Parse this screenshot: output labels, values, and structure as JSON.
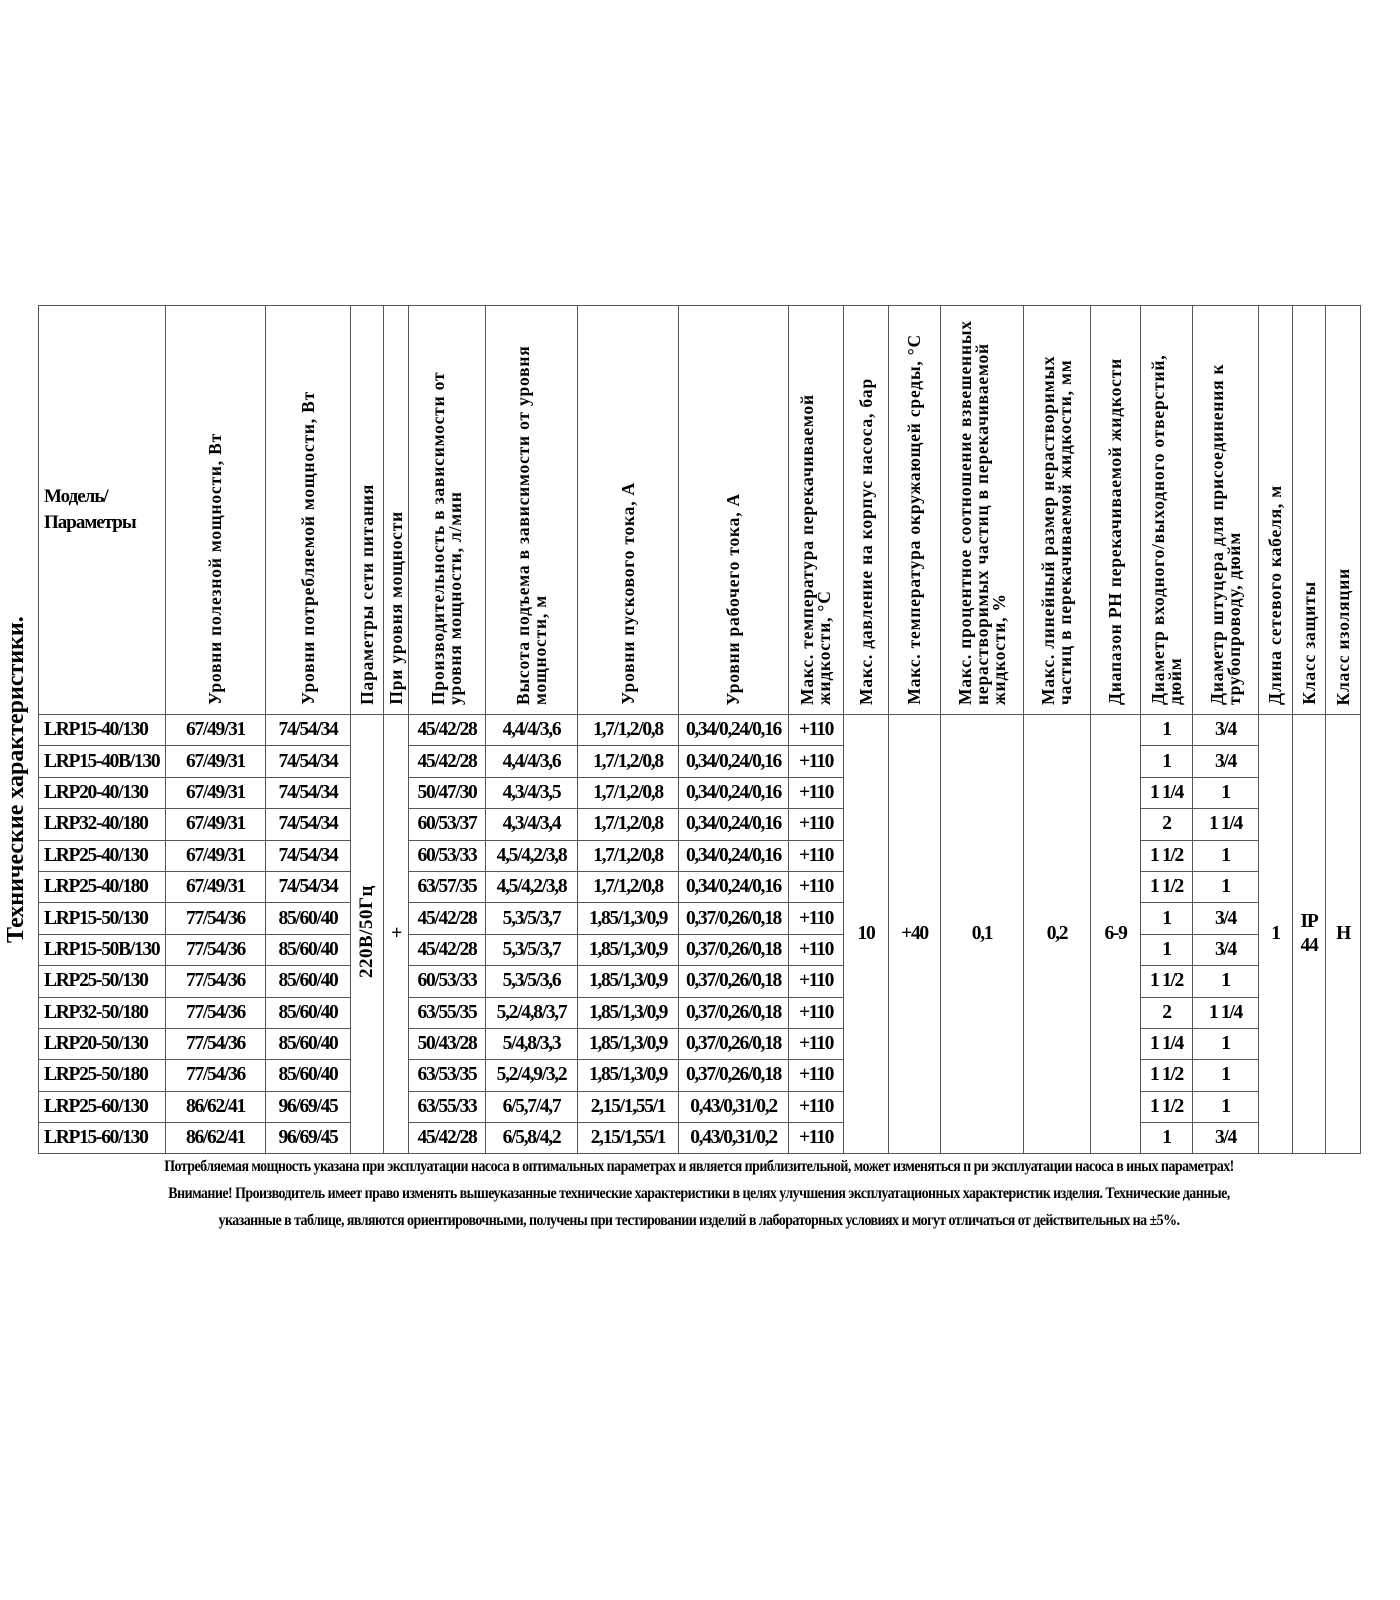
{
  "title": "Технические характеристики.",
  "headers": [
    "Модель/ Параметры",
    "Уровни полезной мощности, Вт",
    "Уровни потребляемой мощности, Вт",
    "Параметры сети питания",
    "При уровня мощности",
    "Производительность в зависимости от уровня мощности, л/мин",
    "Высота подъема в зависимости от уровня мощности, м",
    "Уровни пускового тока, А",
    "Уровни рабочего тока, А",
    "Макс. температура перекачиваемой жидкости, °С",
    "Макс. давление на корпус насоса, бар",
    "Макс. температура окружающей среды, °С",
    "Макс. процентное соотношение взвешенных нерастворимых частиц в перекачиваемой жидкости, %",
    "Макс. линейный размер нерастворимых частиц в перекачиваемой жидкости, мм",
    "Диапазон PH перекачиваемой жидкости",
    "Диаметр входного/выходного отверстий, дюйм",
    "Диаметр штуцера для присоединения к трубопроводу, дюйм",
    "Длина сетевого кабеля, м",
    "Класс защиты",
    "Класс изоляции"
  ],
  "rows": [
    [
      "LRP15-40/130",
      "67/49/31",
      "74/54/34",
      "45/42/28",
      "4,4/4/3,6",
      "1,7/1,2/0,8",
      "0,34/0,24/0,16",
      "+110",
      "1",
      "3/4"
    ],
    [
      "LRP15-40B/130",
      "67/49/31",
      "74/54/34",
      "45/42/28",
      "4,4/4/3,6",
      "1,7/1,2/0,8",
      "0,34/0,24/0,16",
      "+110",
      "1",
      "3/4"
    ],
    [
      "LRP20-40/130",
      "67/49/31",
      "74/54/34",
      "50/47/30",
      "4,3/4/3,5",
      "1,7/1,2/0,8",
      "0,34/0,24/0,16",
      "+110",
      "1 1/4",
      "1"
    ],
    [
      "LRP32-40/180",
      "67/49/31",
      "74/54/34",
      "60/53/37",
      "4,3/4/3,4",
      "1,7/1,2/0,8",
      "0,34/0,24/0,16",
      "+110",
      "2",
      "1 1/4"
    ],
    [
      "LRP25-40/130",
      "67/49/31",
      "74/54/34",
      "60/53/33",
      "4,5/4,2/3,8",
      "1,7/1,2/0,8",
      "0,34/0,24/0,16",
      "+110",
      "1 1/2",
      "1"
    ],
    [
      "LRP25-40/180",
      "67/49/31",
      "74/54/34",
      "63/57/35",
      "4,5/4,2/3,8",
      "1,7/1,2/0,8",
      "0,34/0,24/0,16",
      "+110",
      "1 1/2",
      "1"
    ],
    [
      "LRP15-50/130",
      "77/54/36",
      "85/60/40",
      "45/42/28",
      "5,3/5/3,7",
      "1,85/1,3/0,9",
      "0,37/0,26/0,18",
      "+110",
      "1",
      "3/4"
    ],
    [
      "LRP15-50B/130",
      "77/54/36",
      "85/60/40",
      "45/42/28",
      "5,3/5/3,7",
      "1,85/1,3/0,9",
      "0,37/0,26/0,18",
      "+110",
      "1",
      "3/4"
    ],
    [
      "LRP25-50/130",
      "77/54/36",
      "85/60/40",
      "60/53/33",
      "5,3/5/3,6",
      "1,85/1,3/0,9",
      "0,37/0,26/0,18",
      "+110",
      "1 1/2",
      "1"
    ],
    [
      "LRP32-50/180",
      "77/54/36",
      "85/60/40",
      "63/55/35",
      "5,2/4,8/3,7",
      "1,85/1,3/0,9",
      "0,37/0,26/0,18",
      "+110",
      "2",
      "1 1/4"
    ],
    [
      "LRP20-50/130",
      "77/54/36",
      "85/60/40",
      "50/43/28",
      "5/4,8/3,3",
      "1,85/1,3/0,9",
      "0,37/0,26/0,18",
      "+110",
      "1 1/4",
      "1"
    ],
    [
      "LRP25-50/180",
      "77/54/36",
      "85/60/40",
      "63/53/35",
      "5,2/4,9/3,2",
      "1,85/1,3/0,9",
      "0,37/0,26/0,18",
      "+110",
      "1 1/2",
      "1"
    ],
    [
      "LRP25-60/130",
      "86/62/41",
      "96/69/45",
      "63/55/33",
      "6/5,7/4,7",
      "2,15/1,55/1",
      "0,43/0,31/0,2",
      "+110",
      "1 1/2",
      "1"
    ],
    [
      "LRP15-60/130",
      "86/62/41",
      "96/69/45",
      "45/42/28",
      "6/5,8/4,2",
      "2,15/1,55/1",
      "0,43/0,31/0,2",
      "+110",
      "1",
      "3/4"
    ]
  ],
  "merged": {
    "network": "220В/50Гц",
    "power_level": "+",
    "pressure": "10",
    "ambient_temp": "+40",
    "particles_percent": "0,1",
    "particle_size": "0,2",
    "ph": "6-9",
    "cable": "1",
    "ip_class": "IP 44",
    "insulation": "H"
  },
  "notes": [
    "Потребляемая мощность указана при эксплуатации насоса в оптимальных параметрах и является приблизительной, может изменяться п ри эксплуатации насоса в иных параметрах!",
    "Внимание! Производитель имеет право изменять вышеуказанные технические характеристики в целях улучшения эксплуатационных характеристик изделия. Технические данные,",
    "указанные в таблице, являются ориентировочными, получены при тестировании изделий в лабораторных условиях и   могут отличаться от действительных на ±5%."
  ]
}
